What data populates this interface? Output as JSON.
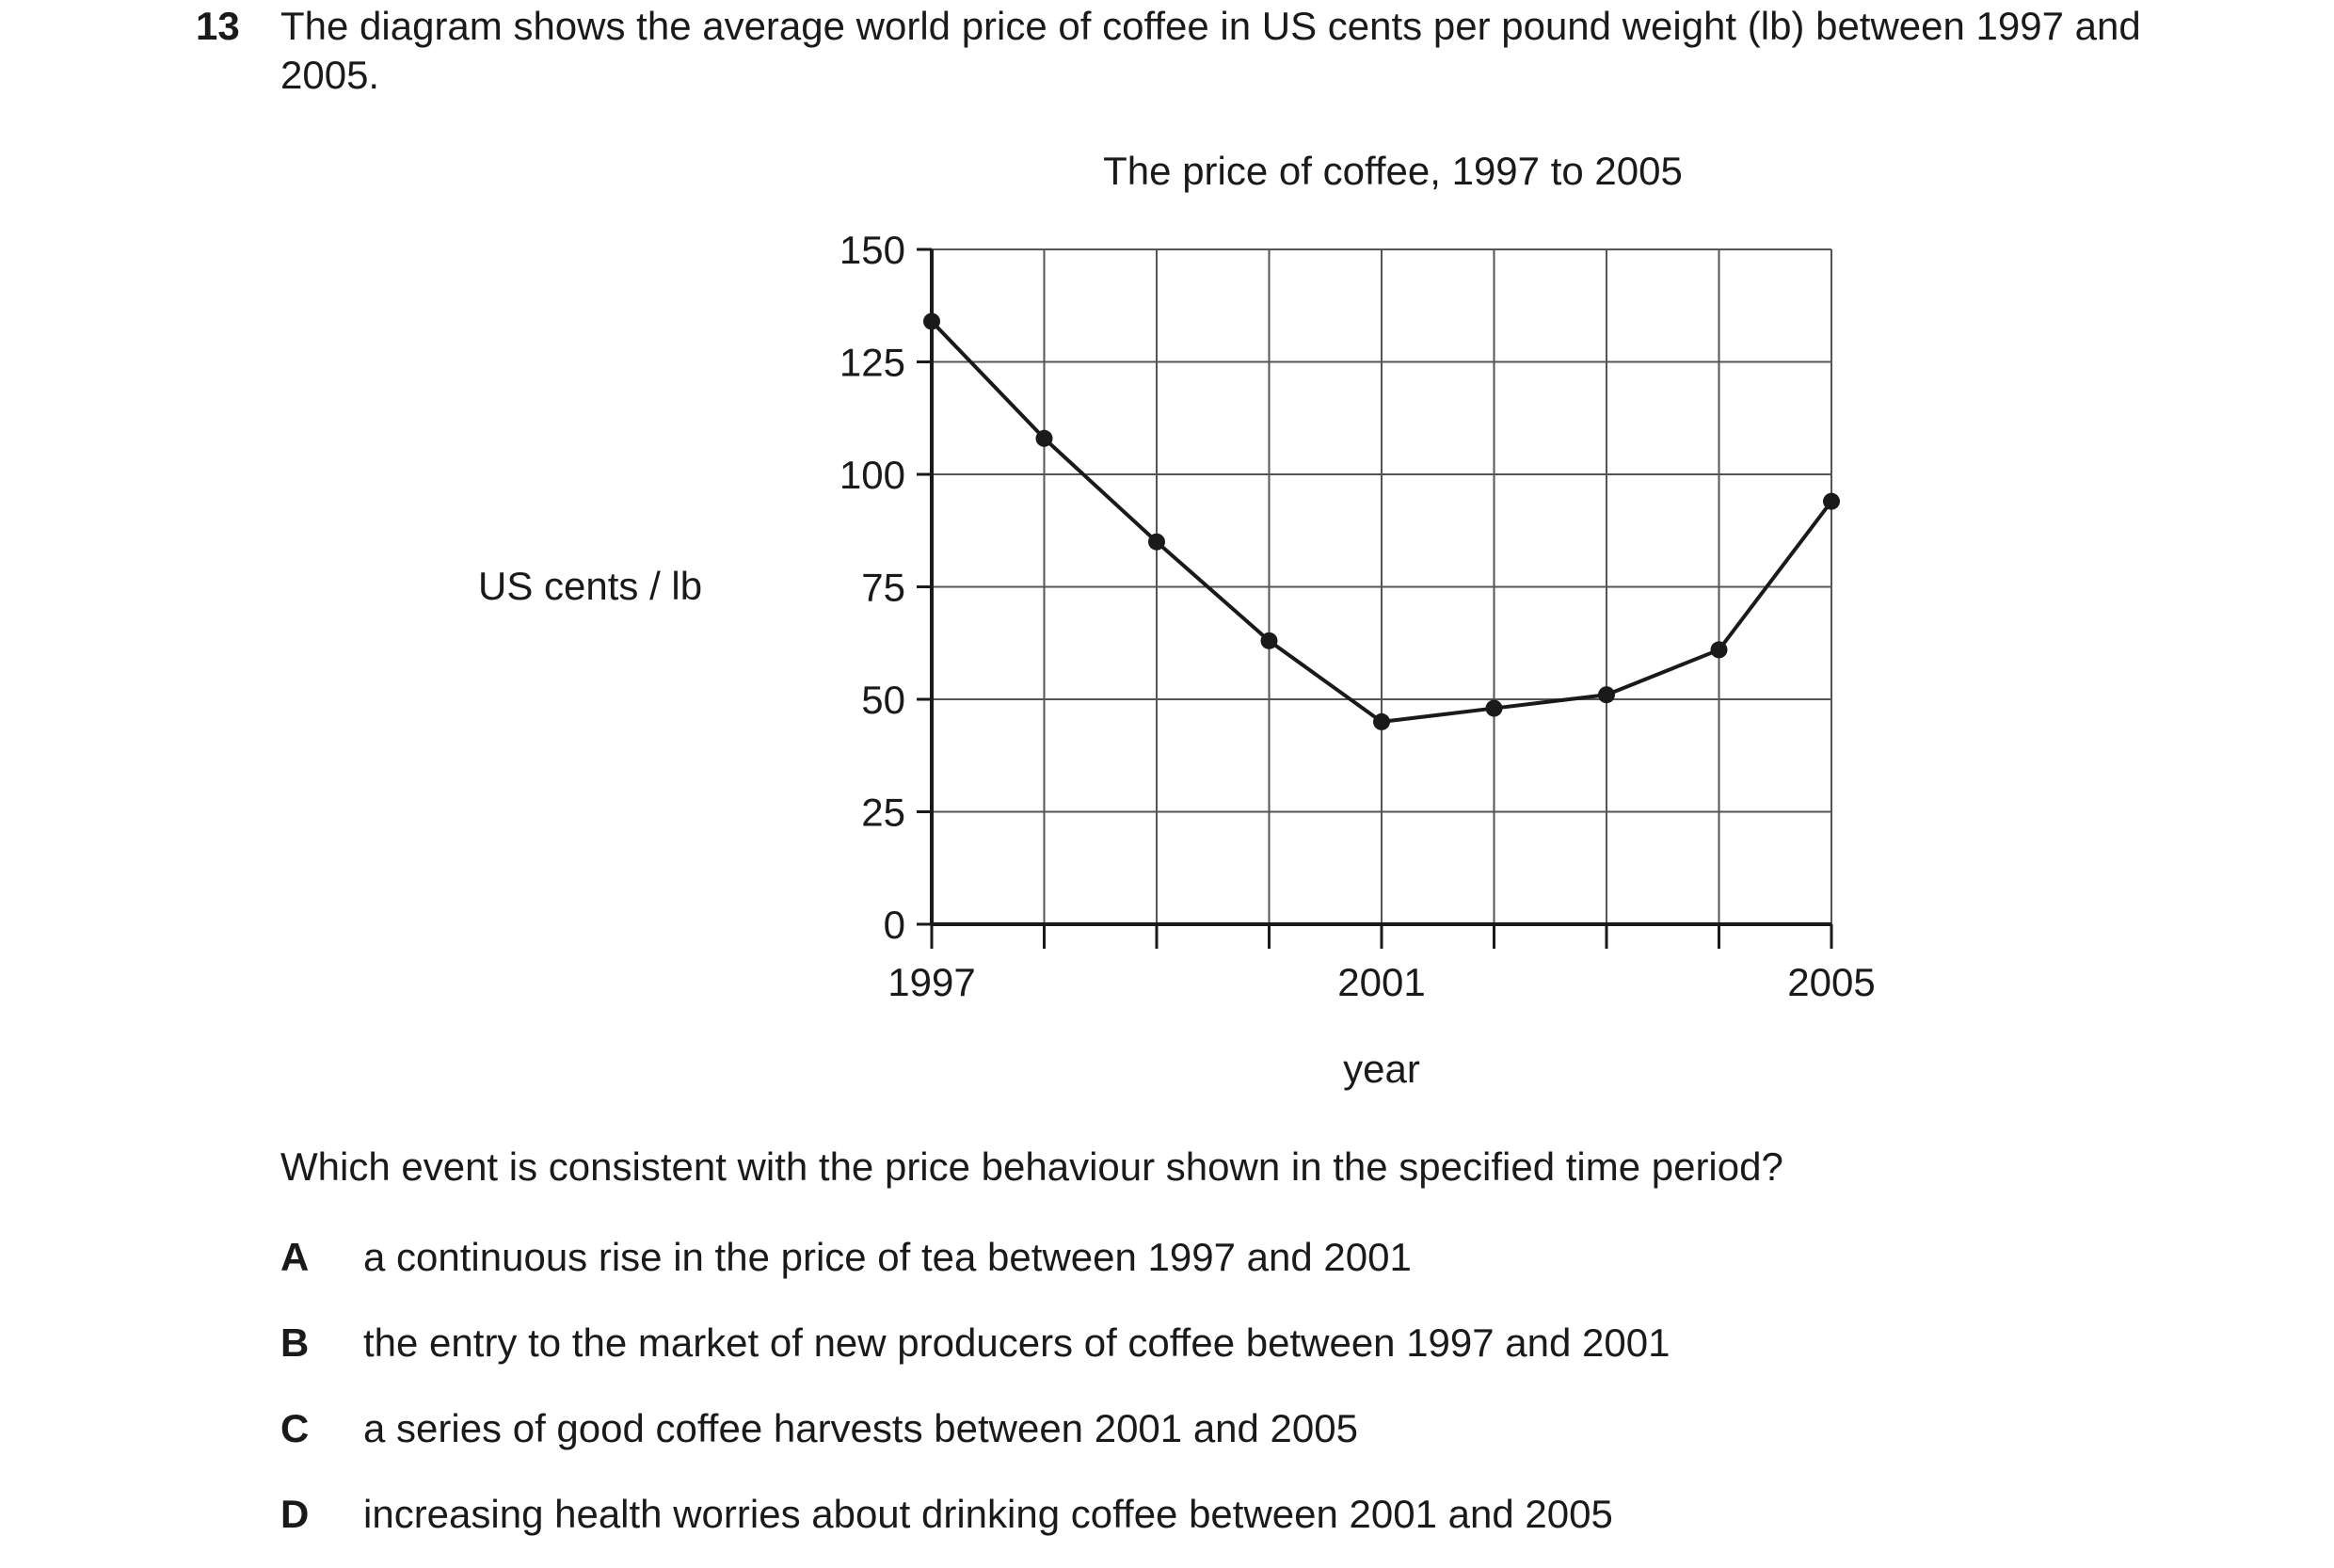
{
  "question": {
    "number": "13",
    "stem": "The diagram shows the average world price of coffee in US cents per pound weight (lb) between 1997 and 2005.",
    "prompt": "Which event is consistent with the price behaviour shown in the specified time period?",
    "options": [
      {
        "letter": "A",
        "text": "a continuous rise in the price of tea between 1997 and 2001"
      },
      {
        "letter": "B",
        "text": "the entry to the market of new producers of coffee between 1997 and 2001"
      },
      {
        "letter": "C",
        "text": "a series of good coffee harvests between 2001 and 2005"
      },
      {
        "letter": "D",
        "text": "increasing health worries about drinking coffee between 2001 and 2005"
      }
    ]
  },
  "chart_data": {
    "type": "line",
    "title": "The price of coffee, 1997 to 2005",
    "xlabel": "year",
    "ylabel": "US cents / lb",
    "x": [
      1997,
      1998,
      1999,
      2000,
      2001,
      2002,
      2003,
      2004,
      2005
    ],
    "values": [
      134,
      108,
      85,
      63,
      45,
      48,
      51,
      61,
      94
    ],
    "x_tick_labels": [
      "1997",
      "2001",
      "2005"
    ],
    "x_tick_label_years": [
      1997,
      2001,
      2005
    ],
    "y_ticks": [
      0,
      25,
      50,
      75,
      100,
      125,
      150
    ],
    "xlim": [
      1997,
      2005
    ],
    "ylim": [
      0,
      150
    ],
    "grid": true,
    "colors": {
      "line": "#1a1a1a",
      "grid": "#555555"
    }
  }
}
